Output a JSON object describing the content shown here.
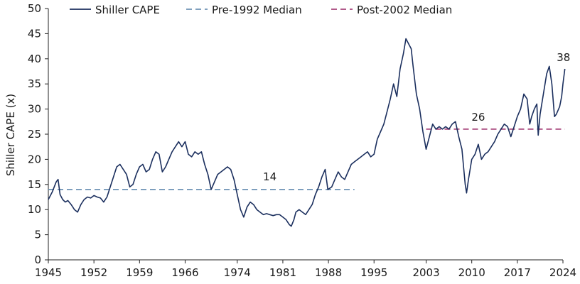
{
  "chart_data": {
    "type": "line",
    "title": "",
    "xlabel": "",
    "ylabel": "Shiller CAPE (x)",
    "xlim": [
      1945,
      2024
    ],
    "ylim": [
      0,
      50
    ],
    "x_ticks": [
      1945,
      1952,
      1959,
      1966,
      1974,
      1981,
      1988,
      1995,
      2003,
      2010,
      2017,
      2024
    ],
    "y_ticks": [
      0,
      5,
      10,
      15,
      20,
      25,
      30,
      35,
      40,
      45,
      50
    ],
    "grid": false,
    "legend_position": "top",
    "series": [
      {
        "name": "Shiller CAPE",
        "style": "solid",
        "color": "#1b2f5e",
        "points": [
          [
            1945.0,
            12.0
          ],
          [
            1945.6,
            13.5
          ],
          [
            1946.2,
            15.5
          ],
          [
            1946.5,
            16.0
          ],
          [
            1946.8,
            13.0
          ],
          [
            1947.2,
            12.0
          ],
          [
            1947.6,
            11.5
          ],
          [
            1948.0,
            11.8
          ],
          [
            1948.5,
            11.0
          ],
          [
            1949.0,
            10.0
          ],
          [
            1949.5,
            9.5
          ],
          [
            1950.0,
            11.0
          ],
          [
            1950.5,
            12.0
          ],
          [
            1951.0,
            12.5
          ],
          [
            1951.5,
            12.3
          ],
          [
            1952.0,
            12.8
          ],
          [
            1952.5,
            12.5
          ],
          [
            1953.0,
            12.3
          ],
          [
            1953.5,
            11.5
          ],
          [
            1954.0,
            12.5
          ],
          [
            1954.5,
            14.5
          ],
          [
            1955.0,
            16.5
          ],
          [
            1955.5,
            18.5
          ],
          [
            1956.0,
            19.0
          ],
          [
            1956.5,
            18.0
          ],
          [
            1957.0,
            17.0
          ],
          [
            1957.5,
            14.5
          ],
          [
            1958.0,
            15.0
          ],
          [
            1958.5,
            17.0
          ],
          [
            1959.0,
            18.5
          ],
          [
            1959.5,
            19.0
          ],
          [
            1960.0,
            17.5
          ],
          [
            1960.5,
            18.0
          ],
          [
            1961.0,
            20.0
          ],
          [
            1961.5,
            21.5
          ],
          [
            1962.0,
            21.0
          ],
          [
            1962.5,
            17.5
          ],
          [
            1963.0,
            18.5
          ],
          [
            1963.5,
            20.0
          ],
          [
            1964.0,
            21.5
          ],
          [
            1964.5,
            22.5
          ],
          [
            1965.0,
            23.5
          ],
          [
            1965.5,
            22.5
          ],
          [
            1966.0,
            23.5
          ],
          [
            1966.5,
            21.0
          ],
          [
            1967.0,
            20.5
          ],
          [
            1967.5,
            21.5
          ],
          [
            1968.0,
            21.0
          ],
          [
            1968.5,
            21.5
          ],
          [
            1969.0,
            19.0
          ],
          [
            1969.5,
            17.0
          ],
          [
            1970.0,
            14.0
          ],
          [
            1970.5,
            15.5
          ],
          [
            1971.0,
            17.0
          ],
          [
            1971.5,
            17.5
          ],
          [
            1972.0,
            18.0
          ],
          [
            1972.5,
            18.5
          ],
          [
            1973.0,
            18.0
          ],
          [
            1973.5,
            16.0
          ],
          [
            1974.0,
            13.0
          ],
          [
            1974.5,
            10.0
          ],
          [
            1975.0,
            8.5
          ],
          [
            1975.5,
            10.5
          ],
          [
            1976.0,
            11.5
          ],
          [
            1976.5,
            11.0
          ],
          [
            1977.0,
            10.0
          ],
          [
            1977.5,
            9.5
          ],
          [
            1978.0,
            9.0
          ],
          [
            1978.5,
            9.2
          ],
          [
            1979.0,
            9.0
          ],
          [
            1979.5,
            8.8
          ],
          [
            1980.0,
            9.0
          ],
          [
            1980.5,
            9.0
          ],
          [
            1981.0,
            8.5
          ],
          [
            1981.5,
            8.0
          ],
          [
            1982.0,
            7.0
          ],
          [
            1982.3,
            6.7
          ],
          [
            1982.7,
            8.0
          ],
          [
            1983.0,
            9.5
          ],
          [
            1983.5,
            10.0
          ],
          [
            1984.0,
            9.5
          ],
          [
            1984.5,
            9.0
          ],
          [
            1985.0,
            10.0
          ],
          [
            1985.5,
            11.0
          ],
          [
            1986.0,
            13.0
          ],
          [
            1986.5,
            14.5
          ],
          [
            1987.0,
            16.5
          ],
          [
            1987.5,
            18.0
          ],
          [
            1987.9,
            14.0
          ],
          [
            1988.5,
            14.5
          ],
          [
            1989.0,
            16.0
          ],
          [
            1989.5,
            17.5
          ],
          [
            1990.0,
            16.5
          ],
          [
            1990.5,
            16.0
          ],
          [
            1991.0,
            17.5
          ],
          [
            1991.5,
            19.0
          ],
          [
            1992.0,
            19.5
          ],
          [
            1992.5,
            20.0
          ],
          [
            1993.0,
            20.5
          ],
          [
            1993.5,
            21.0
          ],
          [
            1994.0,
            21.5
          ],
          [
            1994.5,
            20.5
          ],
          [
            1995.0,
            21.0
          ],
          [
            1995.5,
            24.0
          ],
          [
            1996.0,
            25.5
          ],
          [
            1996.5,
            27.0
          ],
          [
            1997.0,
            29.5
          ],
          [
            1997.5,
            32.0
          ],
          [
            1998.0,
            35.0
          ],
          [
            1998.5,
            32.5
          ],
          [
            1999.0,
            38.0
          ],
          [
            1999.5,
            41.0
          ],
          [
            1999.9,
            44.0
          ],
          [
            2000.3,
            43.0
          ],
          [
            2000.7,
            42.0
          ],
          [
            2001.0,
            38.5
          ],
          [
            2001.5,
            33.0
          ],
          [
            2002.0,
            30.0
          ],
          [
            2002.5,
            25.5
          ],
          [
            2003.0,
            22.0
          ],
          [
            2003.5,
            24.5
          ],
          [
            2004.0,
            27.0
          ],
          [
            2004.5,
            26.0
          ],
          [
            2005.0,
            26.5
          ],
          [
            2005.5,
            26.0
          ],
          [
            2006.0,
            26.5
          ],
          [
            2006.5,
            26.0
          ],
          [
            2007.0,
            27.0
          ],
          [
            2007.5,
            27.5
          ],
          [
            2008.0,
            24.5
          ],
          [
            2008.5,
            22.0
          ],
          [
            2009.0,
            15.0
          ],
          [
            2009.2,
            13.3
          ],
          [
            2009.5,
            16.0
          ],
          [
            2010.0,
            20.0
          ],
          [
            2010.5,
            21.0
          ],
          [
            2011.0,
            23.0
          ],
          [
            2011.5,
            20.0
          ],
          [
            2012.0,
            21.0
          ],
          [
            2012.5,
            21.5
          ],
          [
            2013.0,
            22.5
          ],
          [
            2013.5,
            23.5
          ],
          [
            2014.0,
            25.0
          ],
          [
            2014.5,
            26.0
          ],
          [
            2015.0,
            27.0
          ],
          [
            2015.5,
            26.5
          ],
          [
            2016.0,
            24.5
          ],
          [
            2016.5,
            26.5
          ],
          [
            2017.0,
            28.5
          ],
          [
            2017.5,
            30.0
          ],
          [
            2018.0,
            33.0
          ],
          [
            2018.5,
            32.0
          ],
          [
            2018.9,
            27.0
          ],
          [
            2019.2,
            28.5
          ],
          [
            2019.6,
            30.0
          ],
          [
            2020.0,
            31.0
          ],
          [
            2020.2,
            24.8
          ],
          [
            2020.5,
            29.0
          ],
          [
            2021.0,
            33.0
          ],
          [
            2021.5,
            37.0
          ],
          [
            2021.9,
            38.5
          ],
          [
            2022.3,
            35.0
          ],
          [
            2022.7,
            28.5
          ],
          [
            2023.0,
            29.0
          ],
          [
            2023.5,
            30.5
          ],
          [
            2023.8,
            32.5
          ],
          [
            2024.0,
            35.0
          ],
          [
            2024.3,
            38.0
          ]
        ]
      },
      {
        "name": "Pre-1992 Median",
        "style": "dashed",
        "color": "#6f93b5",
        "points": [
          [
            1945,
            14
          ],
          [
            1992,
            14
          ]
        ]
      },
      {
        "name": "Post-2002 Median",
        "style": "dashed",
        "color": "#a6437a",
        "points": [
          [
            2003,
            26
          ],
          [
            2024.3,
            26
          ]
        ]
      }
    ],
    "annotations": [
      {
        "text": "14",
        "x": 1979,
        "y": 14
      },
      {
        "text": "26",
        "x": 2011,
        "y": 26
      },
      {
        "text": "38",
        "x": 2024.3,
        "y": 38
      }
    ]
  }
}
